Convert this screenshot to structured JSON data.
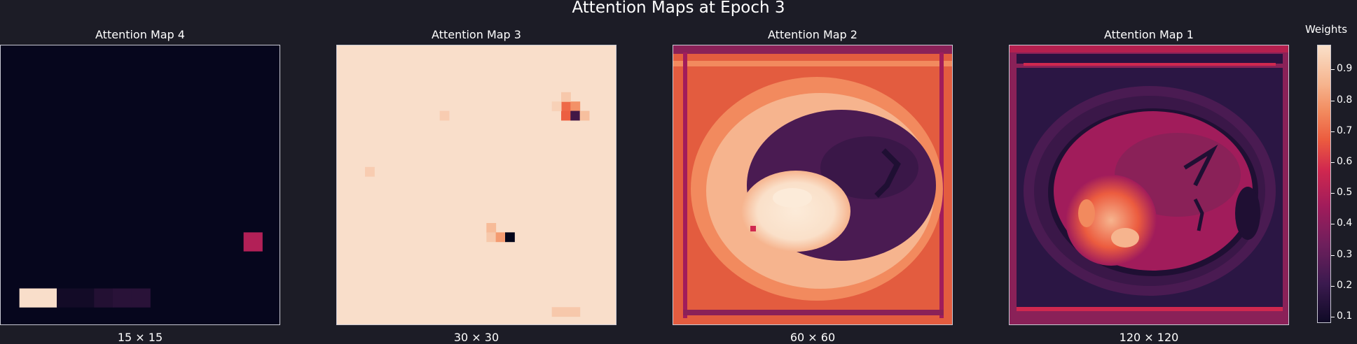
{
  "title": "Attention Maps at Epoch 3",
  "colorbar": {
    "title": "Weights",
    "ticks": [
      "0.1",
      "0.2",
      "0.3",
      "0.4",
      "0.5",
      "0.6",
      "0.7",
      "0.8",
      "0.9"
    ],
    "range": [
      0.08,
      0.98
    ],
    "colormap": "rocket"
  },
  "chart_data": [
    {
      "type": "heatmap",
      "title": "Attention Map 4",
      "xlabel": "15 × 15",
      "grid": 15,
      "background": 0.09,
      "cells": [
        {
          "row": 13,
          "col": 1,
          "w": 2,
          "h": 1,
          "v": 0.95
        },
        {
          "row": 13,
          "col": 3,
          "w": 2,
          "h": 1,
          "v": 0.13
        },
        {
          "row": 13,
          "col": 5,
          "w": 1,
          "h": 1,
          "v": 0.18
        },
        {
          "row": 13,
          "col": 6,
          "w": 1,
          "h": 1,
          "v": 0.2
        },
        {
          "row": 13,
          "col": 7,
          "w": 1,
          "h": 1,
          "v": 0.2
        },
        {
          "row": 10,
          "col": 13,
          "w": 1,
          "h": 1,
          "v": 0.5
        }
      ]
    },
    {
      "type": "heatmap",
      "title": "Attention Map 3",
      "xlabel": "30 × 30",
      "grid": 30,
      "background": 0.95,
      "cells": [
        {
          "row": 6,
          "col": 24,
          "w": 1,
          "h": 1,
          "v": 0.7
        },
        {
          "row": 7,
          "col": 24,
          "w": 1,
          "h": 1,
          "v": 0.68
        },
        {
          "row": 6,
          "col": 25,
          "w": 1,
          "h": 1,
          "v": 0.78
        },
        {
          "row": 7,
          "col": 25,
          "w": 1,
          "h": 1,
          "v": 0.25
        },
        {
          "row": 5,
          "col": 24,
          "w": 1,
          "h": 1,
          "v": 0.9
        },
        {
          "row": 7,
          "col": 26,
          "w": 1,
          "h": 1,
          "v": 0.88
        },
        {
          "row": 6,
          "col": 23,
          "w": 1,
          "h": 1,
          "v": 0.92
        },
        {
          "row": 7,
          "col": 11,
          "w": 1,
          "h": 1,
          "v": 0.91
        },
        {
          "row": 13,
          "col": 3,
          "w": 1,
          "h": 1,
          "v": 0.91
        },
        {
          "row": 19,
          "col": 16,
          "w": 1,
          "h": 1,
          "v": 0.87
        },
        {
          "row": 20,
          "col": 16,
          "w": 1,
          "h": 1,
          "v": 0.9
        },
        {
          "row": 20,
          "col": 17,
          "w": 1,
          "h": 1,
          "v": 0.8
        },
        {
          "row": 20,
          "col": 18,
          "w": 1,
          "h": 1,
          "v": 0.08
        },
        {
          "row": 28,
          "col": 23,
          "w": 3,
          "h": 1,
          "v": 0.9
        }
      ]
    },
    {
      "type": "heatmap",
      "title": "Attention Map 2",
      "xlabel": "60 × 60",
      "grid": 60,
      "background": 0.62,
      "structure": "brain scan: bright outer ring, dark brain tissue, bright lesion lower-left"
    },
    {
      "type": "heatmap",
      "title": "Attention Map 1",
      "xlabel": "120 × 120",
      "grid": 120,
      "background": 0.45,
      "structure": "brain scan: dark border frame, mid-intensity brain with bright lesion center-left"
    }
  ]
}
